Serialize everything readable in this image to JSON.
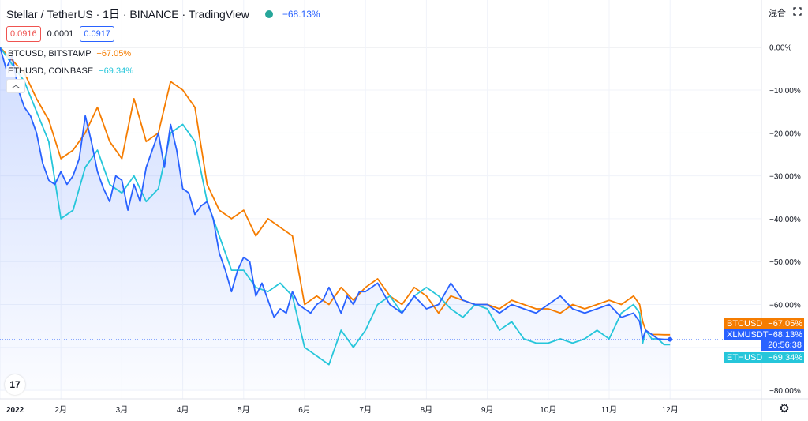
{
  "header": {
    "symbol": "Stellar",
    "separator1": "/",
    "quote": "TetherUS",
    "interval_sep": "·",
    "interval": "1日",
    "exchange": "· BINANCE · TradingView",
    "change": "−68.13%"
  },
  "prices": {
    "bid": "0.0916",
    "spread": "0.0001",
    "ask": "0.0917"
  },
  "legend": [
    {
      "name": "BTCUSD, BITSTAMP",
      "change": "−67.05%",
      "color": "#f57c00"
    },
    {
      "name": "ETHUSD, COINBASE",
      "change": "−69.34%",
      "color": "#26c6da"
    }
  ],
  "collapse_glyph": "︿",
  "mode_label": "混合",
  "logo_text": "17",
  "settings_glyph": "⚙",
  "price_tags": {
    "btc": {
      "name": "BTCUSD",
      "value": "−67.05%",
      "color": "#f57c00"
    },
    "xlm": {
      "name": "XLMUSDT",
      "value": "−68.13%",
      "color": "#2962ff",
      "countdown": "20:56:38"
    },
    "eth": {
      "name": "ETHUSD",
      "value": "−69.34%",
      "color": "#26c6da"
    }
  },
  "chart_data": {
    "type": "line",
    "title": "Stellar / TetherUS · 1日 · BINANCE · TradingView",
    "ylim": [
      -82,
      11
    ],
    "y_unit": "%",
    "y_ticks": [
      "0.00%",
      "−10.00%",
      "−20.00%",
      "−30.00%",
      "−40.00%",
      "−50.00%",
      "−60.00%",
      "−70.00%",
      "−80.00%"
    ],
    "y_tick_values": [
      0,
      -10,
      -20,
      -30,
      -40,
      -50,
      -60,
      -70,
      -80
    ],
    "x_labels": [
      "2022",
      "2月",
      "3月",
      "4月",
      "5月",
      "6月",
      "7月",
      "8月",
      "9月",
      "10月",
      "11月",
      "12月"
    ],
    "x_label_months": [
      0,
      1,
      2,
      3,
      4,
      5,
      6,
      7,
      8,
      9,
      10,
      11
    ],
    "x_unit": "months since 2022-01-01",
    "xlim": [
      0,
      12.5
    ],
    "series": [
      {
        "name": "XLMUSDT",
        "color": "#2962ff",
        "area": true,
        "x": [
          0,
          0.1,
          0.2,
          0.3,
          0.4,
          0.5,
          0.6,
          0.7,
          0.8,
          0.9,
          1.0,
          1.1,
          1.2,
          1.3,
          1.4,
          1.5,
          1.6,
          1.7,
          1.8,
          1.9,
          2.0,
          2.1,
          2.2,
          2.3,
          2.4,
          2.5,
          2.6,
          2.7,
          2.8,
          2.9,
          3.0,
          3.1,
          3.2,
          3.3,
          3.4,
          3.5,
          3.6,
          3.7,
          3.8,
          3.9,
          4.0,
          4.1,
          4.2,
          4.3,
          4.4,
          4.5,
          4.6,
          4.7,
          4.8,
          4.9,
          5.0,
          5.1,
          5.2,
          5.3,
          5.4,
          5.5,
          5.6,
          5.7,
          5.8,
          5.9,
          6.0,
          6.2,
          6.4,
          6.6,
          6.8,
          7.0,
          7.2,
          7.4,
          7.6,
          7.8,
          8.0,
          8.2,
          8.4,
          8.6,
          8.8,
          9.0,
          9.2,
          9.4,
          9.6,
          9.8,
          10.0,
          10.2,
          10.4,
          10.5,
          10.55,
          10.6,
          10.7,
          10.8,
          10.9,
          11.0
        ],
        "y": [
          0,
          -5,
          -2,
          -10,
          -14,
          -16,
          -20,
          -27,
          -31,
          -32,
          -29,
          -32,
          -30,
          -26,
          -16,
          -22,
          -29,
          -33,
          -36,
          -30,
          -31,
          -38,
          -32,
          -36,
          -28,
          -24,
          -20,
          -28,
          -18,
          -24,
          -33,
          -34,
          -39,
          -37,
          -36,
          -40,
          -48,
          -52,
          -57,
          -52,
          -49,
          -50,
          -58,
          -55,
          -59,
          -63,
          -61,
          -62,
          -57,
          -60,
          -61,
          -62,
          -60,
          -59,
          -56,
          -59,
          -62,
          -58,
          -60,
          -57,
          -57,
          -55,
          -60,
          -62,
          -58,
          -61,
          -60,
          -55,
          -59,
          -60,
          -60,
          -62,
          -60,
          -61,
          -62,
          -60,
          -58,
          -61,
          -62,
          -61,
          -60,
          -63,
          -62,
          -64,
          -68,
          -66,
          -67,
          -68,
          -68.13,
          -68.13
        ]
      },
      {
        "name": "BTCUSD",
        "color": "#f57c00",
        "area": false,
        "x": [
          0,
          0.2,
          0.4,
          0.6,
          0.8,
          1.0,
          1.2,
          1.4,
          1.6,
          1.8,
          2.0,
          2.2,
          2.4,
          2.6,
          2.8,
          3.0,
          3.2,
          3.4,
          3.6,
          3.8,
          4.0,
          4.2,
          4.4,
          4.6,
          4.8,
          5.0,
          5.2,
          5.4,
          5.6,
          5.8,
          6.0,
          6.2,
          6.4,
          6.6,
          6.8,
          7.0,
          7.2,
          7.4,
          7.6,
          7.8,
          8.0,
          8.2,
          8.4,
          8.6,
          8.8,
          9.0,
          9.2,
          9.4,
          9.6,
          9.8,
          10.0,
          10.2,
          10.4,
          10.5,
          10.55,
          10.6,
          10.7,
          10.8,
          10.9,
          11.0
        ],
        "y": [
          0,
          -3,
          -6,
          -12,
          -17,
          -26,
          -24,
          -20,
          -14,
          -22,
          -26,
          -12,
          -22,
          -20,
          -8,
          -10,
          -14,
          -32,
          -38,
          -40,
          -38,
          -44,
          -40,
          -42,
          -44,
          -60,
          -58,
          -60,
          -56,
          -59,
          -56,
          -54,
          -58,
          -60,
          -56,
          -58,
          -62,
          -58,
          -59,
          -60,
          -60,
          -61,
          -59,
          -60,
          -61,
          -61,
          -62,
          -60,
          -61,
          -60,
          -59,
          -60,
          -58,
          -60,
          -64,
          -66,
          -67,
          -67,
          -67.05,
          -67.05
        ]
      },
      {
        "name": "ETHUSD",
        "color": "#26c6da",
        "area": false,
        "x": [
          0,
          0.2,
          0.4,
          0.6,
          0.8,
          1.0,
          1.2,
          1.4,
          1.6,
          1.8,
          2.0,
          2.2,
          2.4,
          2.6,
          2.8,
          3.0,
          3.2,
          3.4,
          3.6,
          3.8,
          4.0,
          4.2,
          4.4,
          4.6,
          4.8,
          5.0,
          5.2,
          5.4,
          5.6,
          5.8,
          6.0,
          6.2,
          6.4,
          6.6,
          6.8,
          7.0,
          7.2,
          7.4,
          7.6,
          7.8,
          8.0,
          8.2,
          8.4,
          8.6,
          8.8,
          9.0,
          9.2,
          9.4,
          9.6,
          9.8,
          10.0,
          10.2,
          10.4,
          10.5,
          10.55,
          10.6,
          10.7,
          10.8,
          10.9,
          11.0
        ],
        "y": [
          0,
          -4,
          -8,
          -15,
          -22,
          -40,
          -38,
          -28,
          -24,
          -32,
          -34,
          -30,
          -36,
          -33,
          -20,
          -18,
          -22,
          -36,
          -44,
          -52,
          -52,
          -56,
          -57,
          -55,
          -58,
          -70,
          -72,
          -74,
          -66,
          -70,
          -66,
          -60,
          -58,
          -62,
          -58,
          -56,
          -58,
          -61,
          -63,
          -60,
          -61,
          -66,
          -64,
          -68,
          -69,
          -69,
          -68,
          -69,
          -68,
          -66,
          -68,
          -62,
          -60,
          -62,
          -69,
          -66,
          -68,
          -68,
          -69.34,
          -69.34
        ]
      }
    ]
  }
}
